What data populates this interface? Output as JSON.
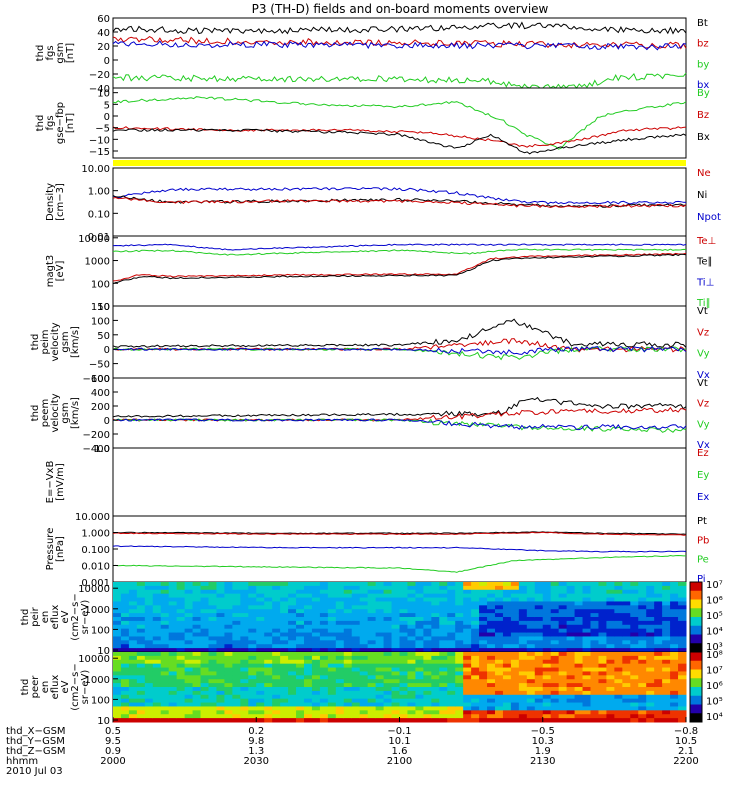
{
  "title": "P3 (TH-D) fields and on-board moments overview",
  "colors": {
    "black": "#000000",
    "red": "#cc0000",
    "green": "#22cc22",
    "blue": "#0000cc",
    "yellow": "#ffff00"
  },
  "chart_data": [
    {
      "type": "line",
      "ylabel": [
        "thd",
        "fgs",
        "gsm",
        "[nT]"
      ],
      "ylim": [
        -40,
        60
      ],
      "yticks": [
        60,
        40,
        20,
        0,
        -20,
        -40
      ],
      "ytick_labels": [
        "60",
        "40",
        "20",
        "0",
        "−20",
        "−40"
      ],
      "legend": [
        "Bt",
        "bz",
        "by",
        "bx"
      ],
      "series": [
        {
          "name": "Bt",
          "color": "black",
          "x": [
            0,
            0.15,
            0.3,
            0.5,
            0.65,
            0.75,
            0.85,
            1
          ],
          "y": [
            45,
            42,
            42,
            44,
            48,
            50,
            43,
            42
          ]
        },
        {
          "name": "bz",
          "color": "red",
          "x": [
            0,
            0.2,
            0.5,
            0.75,
            1
          ],
          "y": [
            30,
            27,
            25,
            22,
            21
          ]
        },
        {
          "name": "by",
          "color": "green",
          "x": [
            0,
            0.25,
            0.5,
            0.65,
            0.72,
            0.8,
            0.88,
            1
          ],
          "y": [
            -25,
            -27,
            -27,
            -30,
            -38,
            -40,
            -25,
            -22
          ]
        },
        {
          "name": "bx",
          "color": "blue",
          "x": [
            0,
            0.2,
            0.5,
            0.75,
            1
          ],
          "y": [
            24,
            22,
            21,
            20,
            19
          ]
        }
      ]
    },
    {
      "type": "line",
      "ylabel": [
        "thd",
        "fgs",
        "gse−fbp",
        "[nT]"
      ],
      "ylim": [
        -18,
        12
      ],
      "yticks": [
        10,
        5,
        0,
        -5,
        -10,
        -15
      ],
      "ytick_labels": [
        "10",
        "5",
        "0",
        "−5",
        "−10",
        "−15"
      ],
      "legend": [
        "By",
        "Bz",
        "Bx"
      ],
      "series": [
        {
          "name": "By",
          "color": "green",
          "x": [
            0,
            0.15,
            0.35,
            0.5,
            0.6,
            0.68,
            0.72,
            0.78,
            0.85,
            0.92,
            1
          ],
          "y": [
            6,
            8,
            5,
            4,
            6,
            -2,
            -8,
            -14,
            0,
            3,
            6
          ]
        },
        {
          "name": "Bz",
          "color": "red",
          "x": [
            0,
            0.2,
            0.4,
            0.55,
            0.65,
            0.72,
            0.8,
            0.9,
            1
          ],
          "y": [
            -5,
            -6,
            -6,
            -7,
            -10,
            -13,
            -11,
            -6,
            -5
          ]
        },
        {
          "name": "Bx",
          "color": "black",
          "x": [
            0,
            0.2,
            0.4,
            0.5,
            0.6,
            0.66,
            0.72,
            0.8,
            0.9,
            1
          ],
          "y": [
            -6,
            -6,
            -7,
            -8,
            -14,
            -8,
            -16,
            -13,
            -10,
            -8
          ]
        }
      ]
    },
    {
      "type": "line",
      "scale": "log",
      "ylabel": [
        "Density",
        "[cm−3]"
      ],
      "ylim": [
        0.01,
        10
      ],
      "yticks": [
        10,
        1,
        0.1,
        0.01
      ],
      "ytick_labels": [
        "10.00",
        "1.00",
        "0.10",
        "0.01"
      ],
      "legend": [
        "Ne",
        "Ni",
        "Npot"
      ],
      "series": [
        {
          "name": "Npot",
          "color": "blue",
          "x": [
            0,
            0.1,
            0.3,
            0.5,
            0.6,
            0.68,
            0.72,
            0.85,
            1
          ],
          "y": [
            0.5,
            1.1,
            1.2,
            1.2,
            0.8,
            0.4,
            0.3,
            0.3,
            0.3
          ]
        },
        {
          "name": "Ni",
          "color": "black",
          "x": [
            0,
            0.1,
            0.3,
            0.5,
            0.6,
            0.7,
            0.8,
            1
          ],
          "y": [
            0.6,
            0.3,
            0.35,
            0.4,
            0.35,
            0.25,
            0.2,
            0.25
          ]
        },
        {
          "name": "Ne",
          "color": "red",
          "x": [
            0,
            0.1,
            0.3,
            0.5,
            0.6,
            0.7,
            0.8,
            1
          ],
          "y": [
            0.5,
            0.3,
            0.35,
            0.35,
            0.3,
            0.22,
            0.2,
            0.22
          ]
        }
      ]
    },
    {
      "type": "line",
      "scale": "log",
      "ylabel": [
        "magt3",
        "[eV]"
      ],
      "ylim": [
        10,
        12000
      ],
      "yticks": [
        10000,
        1000,
        100,
        10
      ],
      "ytick_labels": [
        "10000",
        "1000",
        "100",
        "10"
      ],
      "legend": [
        "Te⊥",
        "Te∥",
        "Ti⊥",
        "Ti∥"
      ],
      "series": [
        {
          "name": "Ti⊥",
          "color": "blue",
          "x": [
            0,
            0.1,
            0.2,
            0.5,
            0.62,
            0.7,
            1
          ],
          "y": [
            4500,
            5000,
            3000,
            5000,
            5000,
            5000,
            5000
          ]
        },
        {
          "name": "Ti∥",
          "color": "green",
          "x": [
            0,
            0.1,
            0.2,
            0.5,
            0.62,
            0.7,
            1
          ],
          "y": [
            2500,
            2800,
            1800,
            2800,
            2000,
            3000,
            3000
          ]
        },
        {
          "name": "Te⊥",
          "color": "red",
          "x": [
            0,
            0.05,
            0.1,
            0.3,
            0.5,
            0.6,
            0.66,
            0.72,
            1
          ],
          "y": [
            120,
            250,
            200,
            230,
            250,
            250,
            1200,
            1500,
            2000
          ]
        },
        {
          "name": "Te∥",
          "color": "black",
          "x": [
            0,
            0.05,
            0.1,
            0.3,
            0.5,
            0.6,
            0.66,
            0.72,
            1
          ],
          "y": [
            100,
            200,
            170,
            200,
            220,
            220,
            1000,
            1300,
            1800
          ]
        }
      ]
    },
    {
      "type": "line",
      "ylabel": [
        "thd",
        "peim",
        "velocity",
        "gsm",
        "[km/s]"
      ],
      "ylim": [
        -100,
        150
      ],
      "yticks": [
        150,
        100,
        50,
        0,
        -50,
        -100
      ],
      "ytick_labels": [
        "150",
        "100",
        "50",
        "0",
        "−50",
        "−100"
      ],
      "legend": [
        "Vt",
        "Vz",
        "Vy",
        "Vx"
      ],
      "series": [
        {
          "name": "Vt",
          "color": "black",
          "x": [
            0,
            0.5,
            0.6,
            0.7,
            0.8,
            1
          ],
          "y": [
            10,
            15,
            30,
            100,
            20,
            15
          ]
        },
        {
          "name": "Vz",
          "color": "red",
          "x": [
            0,
            0.5,
            0.7,
            0.8,
            1
          ],
          "y": [
            0,
            0,
            30,
            0,
            0
          ]
        },
        {
          "name": "Vy",
          "color": "green",
          "x": [
            0,
            0.5,
            0.7,
            0.8,
            1
          ],
          "y": [
            0,
            0,
            -30,
            0,
            0
          ]
        },
        {
          "name": "Vx",
          "color": "blue",
          "x": [
            0,
            0.5,
            0.7,
            0.8,
            1
          ],
          "y": [
            0,
            0,
            -10,
            0,
            0
          ]
        }
      ]
    },
    {
      "type": "line",
      "ylabel": [
        "thd",
        "peem",
        "velocity",
        "gsm",
        "[km/s]"
      ],
      "ylim": [
        -400,
        600
      ],
      "yticks": [
        600,
        400,
        200,
        0,
        -200,
        -400
      ],
      "ytick_labels": [
        "600",
        "400",
        "200",
        "0",
        "−200",
        "−400"
      ],
      "legend": [
        "Vt",
        "Vz",
        "Vy",
        "Vx"
      ],
      "series": [
        {
          "name": "Vt",
          "color": "black",
          "x": [
            0,
            0.5,
            0.68,
            0.72,
            0.85,
            1
          ],
          "y": [
            50,
            80,
            100,
            300,
            200,
            200
          ]
        },
        {
          "name": "Vz",
          "color": "red",
          "x": [
            0,
            0.5,
            0.7,
            1
          ],
          "y": [
            0,
            0,
            100,
            150
          ]
        },
        {
          "name": "Vy",
          "color": "green",
          "x": [
            0,
            0.5,
            0.7,
            1
          ],
          "y": [
            0,
            0,
            -100,
            -150
          ]
        },
        {
          "name": "Vx",
          "color": "blue",
          "x": [
            0,
            0.5,
            0.7,
            1
          ],
          "y": [
            0,
            0,
            -100,
            -100
          ]
        }
      ]
    },
    {
      "type": "line",
      "ylabel": [
        "E=−VxB",
        "[mV/m]"
      ],
      "ylim": [
        -1,
        1
      ],
      "yticks": [
        1.0
      ],
      "ytick_labels": [
        "1.0"
      ],
      "legend": [
        "Ez",
        "Ey",
        "Ex"
      ],
      "series": []
    },
    {
      "type": "line",
      "scale": "log",
      "ylabel": [
        "Pressure",
        "[nPa]"
      ],
      "ylim": [
        0.001,
        10
      ],
      "yticks": [
        10,
        1,
        0.1,
        0.01,
        0.001
      ],
      "ytick_labels": [
        "10.000",
        "1.000",
        "0.100",
        "0.010",
        "0.001"
      ],
      "legend": [
        "Pt",
        "Pb",
        "Pe",
        "Pi"
      ],
      "series": [
        {
          "name": "Pt",
          "color": "black",
          "x": [
            0,
            0.3,
            0.6,
            0.75,
            0.85,
            1
          ],
          "y": [
            1.0,
            0.9,
            0.9,
            1.1,
            0.9,
            0.8
          ]
        },
        {
          "name": "Pb",
          "color": "red",
          "x": [
            0,
            0.3,
            0.6,
            0.75,
            0.85,
            1
          ],
          "y": [
            0.9,
            0.8,
            0.8,
            1.0,
            0.8,
            0.7
          ]
        },
        {
          "name": "Pi",
          "color": "blue",
          "x": [
            0,
            0.3,
            0.6,
            0.75,
            0.85,
            1
          ],
          "y": [
            0.15,
            0.12,
            0.12,
            0.08,
            0.07,
            0.07
          ]
        },
        {
          "name": "Pe",
          "color": "green",
          "x": [
            0,
            0.3,
            0.5,
            0.6,
            0.7,
            0.85,
            1
          ],
          "y": [
            0.01,
            0.008,
            0.007,
            0.004,
            0.02,
            0.03,
            0.04
          ]
        }
      ]
    },
    {
      "type": "heatmap",
      "ylabel": [
        "thd",
        "peir",
        "en",
        "eflux",
        "eV",
        "(cm2−s−",
        "sr−eV)"
      ],
      "scale": "log",
      "ylim": [
        8,
        20000
      ],
      "yticks": [
        10000,
        1000,
        100,
        10
      ],
      "ytick_labels": [
        "10000",
        "1000",
        "100",
        "10"
      ],
      "colorbar_labels": [
        "10⁷",
        "10⁶",
        "10⁵",
        "10⁴",
        "10³"
      ]
    },
    {
      "type": "heatmap",
      "ylabel": [
        "thd",
        "peer",
        "en",
        "eflux",
        "eV",
        "(cm2−s−",
        "sr−eV)"
      ],
      "scale": "log",
      "ylim": [
        8,
        20000
      ],
      "yticks": [
        10000,
        1000,
        100,
        10
      ],
      "ytick_labels": [
        "10000",
        "1000",
        "100",
        "10"
      ],
      "colorbar_labels": [
        "10⁸",
        "10⁷",
        "10⁶",
        "10⁵",
        "10⁴"
      ]
    }
  ],
  "xaxis": {
    "row_labels": [
      "thd_X−GSM",
      "thd_Y−GSM",
      "thd_Z−GSM",
      "hhmm",
      "2010 Jul 03"
    ],
    "ticks": [
      {
        "pos": 0,
        "vals": [
          "0.5",
          "9.5",
          "0.9",
          "2000"
        ]
      },
      {
        "pos": 0.25,
        "vals": [
          "0.2",
          "9.8",
          "1.3",
          "2030"
        ]
      },
      {
        "pos": 0.5,
        "vals": [
          "−0.1",
          "10.1",
          "1.6",
          "2100"
        ]
      },
      {
        "pos": 0.75,
        "vals": [
          "−0.5",
          "10.3",
          "1.9",
          "2130"
        ]
      },
      {
        "pos": 1,
        "vals": [
          "−0.8",
          "10.5",
          "2.1",
          "2200"
        ]
      }
    ]
  }
}
